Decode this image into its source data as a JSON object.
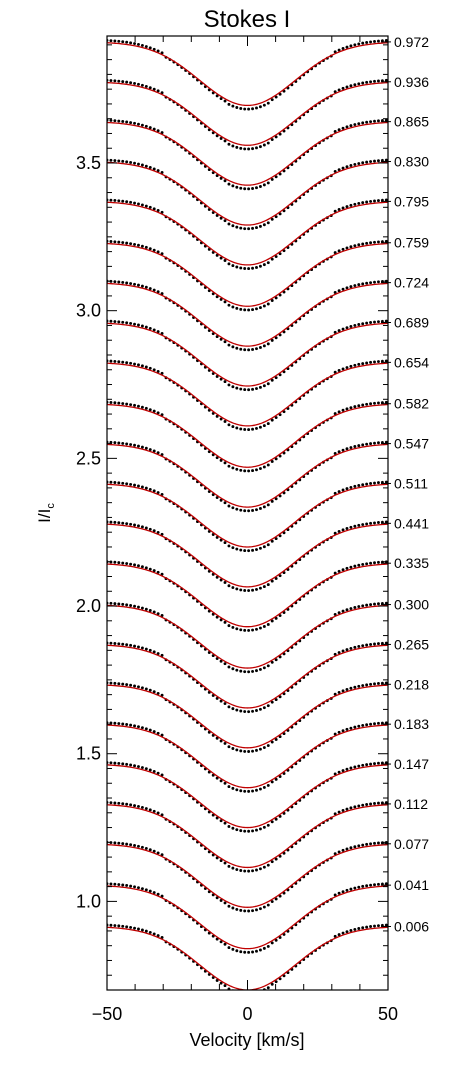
{
  "chart_data": {
    "type": "line",
    "title": "Stokes I",
    "xlabel": "Velocity [km/s]",
    "ylabel_main": "I/I",
    "ylabel_sub": "c",
    "xlim": [
      -50,
      50
    ],
    "ylim": [
      0.7,
      3.93
    ],
    "x_ticks": [
      -50,
      0,
      50
    ],
    "x_tick_labels": [
      "−50",
      "0",
      "50"
    ],
    "y_ticks": [
      1.0,
      1.5,
      2.0,
      2.5,
      3.0,
      3.5
    ],
    "y_tick_labels": [
      "1.0",
      "1.5",
      "2.0",
      "2.5",
      "3.0",
      "3.5"
    ],
    "line_depth": 0.215,
    "line_halfwidth_kms": 20,
    "model_color": "#c00000",
    "observation_color": "#000000",
    "series": [
      {
        "phase_label": "0.006",
        "continuum": 0.915
      },
      {
        "phase_label": "0.041",
        "continuum": 1.055
      },
      {
        "phase_label": "0.077",
        "continuum": 1.195
      },
      {
        "phase_label": "0.112",
        "continuum": 1.33
      },
      {
        "phase_label": "0.147",
        "continuum": 1.465
      },
      {
        "phase_label": "0.183",
        "continuum": 1.6
      },
      {
        "phase_label": "0.218",
        "continuum": 1.735
      },
      {
        "phase_label": "0.265",
        "continuum": 1.87
      },
      {
        "phase_label": "0.300",
        "continuum": 2.005
      },
      {
        "phase_label": "0.335",
        "continuum": 2.145
      },
      {
        "phase_label": "0.441",
        "continuum": 2.28
      },
      {
        "phase_label": "0.511",
        "continuum": 2.415
      },
      {
        "phase_label": "0.547",
        "continuum": 2.55
      },
      {
        "phase_label": "0.582",
        "continuum": 2.685
      },
      {
        "phase_label": "0.654",
        "continuum": 2.825
      },
      {
        "phase_label": "0.689",
        "continuum": 2.96
      },
      {
        "phase_label": "0.724",
        "continuum": 3.095
      },
      {
        "phase_label": "0.759",
        "continuum": 3.23
      },
      {
        "phase_label": "0.795",
        "continuum": 3.37
      },
      {
        "phase_label": "0.830",
        "continuum": 3.505
      },
      {
        "phase_label": "0.865",
        "continuum": 3.64
      },
      {
        "phase_label": "0.936",
        "continuum": 3.775
      },
      {
        "phase_label": "0.972",
        "continuum": 3.91
      }
    ]
  }
}
